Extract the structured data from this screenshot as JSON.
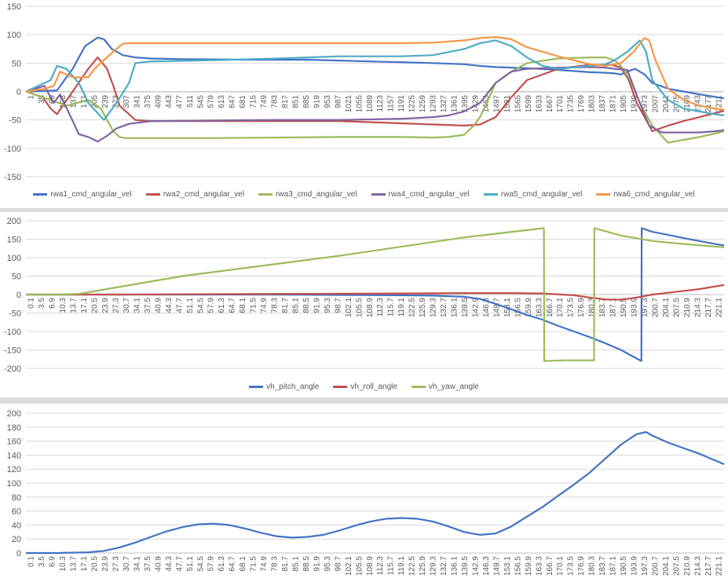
{
  "chart_data": [
    {
      "type": "line",
      "title": "",
      "xlabel": "",
      "ylabel": "",
      "ylim": [
        -150,
        150
      ],
      "y_ticks": [
        "150",
        "100",
        "50",
        "0",
        "-50",
        "-100",
        "-150"
      ],
      "grid": "horizontal",
      "legend_position": "bottom",
      "x_tick_labels": [
        "1",
        "35",
        "69",
        "103",
        "137",
        "171",
        "205",
        "239",
        "273",
        "307",
        "341",
        "375",
        "409",
        "443",
        "477",
        "511",
        "545",
        "579",
        "613",
        "647",
        "681",
        "715",
        "749",
        "783",
        "817",
        "851",
        "885",
        "919",
        "953",
        "987",
        "1021",
        "1055",
        "1089",
        "1123",
        "1157",
        "1191",
        "1225",
        "1259",
        "1293",
        "1327",
        "1361",
        "1395",
        "1429",
        "1463",
        "1497",
        "1531",
        "1565",
        "1599",
        "1633",
        "1667",
        "1701",
        "1735",
        "1769",
        "1803",
        "1837",
        "1871",
        "1905",
        "1939",
        "1973",
        "2007",
        "2041",
        "2075",
        "2109",
        "2143",
        "2177",
        "2211"
      ],
      "x_range": [
        1,
        2229
      ],
      "series": [
        {
          "name": "rwa1_cmd_angular_vel",
          "color": "#4472C4",
          "x": [
            1,
            100,
            150,
            190,
            230,
            250,
            275,
            310,
            350,
            400,
            500,
            700,
            900,
            1100,
            1300,
            1400,
            1450,
            1500,
            1550,
            1600,
            1700,
            1800,
            1850,
            1880,
            1900,
            1920,
            1945,
            1975,
            2000,
            2050,
            2100,
            2150,
            2229
          ],
          "y": [
            0,
            2,
            40,
            80,
            95,
            92,
            75,
            64,
            60,
            58,
            57,
            56,
            56,
            53,
            50,
            48,
            45,
            43,
            42,
            41,
            38,
            34,
            33,
            32,
            30,
            35,
            40,
            30,
            15,
            5,
            0,
            -5,
            -12
          ]
        },
        {
          "name": "rwa2_cmd_angular_vel",
          "color": "#C0504D",
          "x": [
            1,
            55,
            80,
            100,
            150,
            200,
            230,
            260,
            280,
            300,
            350,
            400,
            600,
            800,
            1000,
            1200,
            1400,
            1450,
            1500,
            1550,
            1600,
            1700,
            1800,
            1870,
            1900,
            1925,
            1950,
            1975,
            2000,
            2050,
            2100,
            2150,
            2200,
            2229
          ],
          "y": [
            0,
            -10,
            -30,
            -40,
            0,
            40,
            60,
            40,
            10,
            -25,
            -50,
            -52,
            -52,
            -52,
            -52,
            -56,
            -60,
            -58,
            -45,
            -10,
            20,
            40,
            47,
            47,
            42,
            20,
            -20,
            -45,
            -70,
            -60,
            -52,
            -45,
            -38,
            -34
          ]
        },
        {
          "name": "rwa3_cmd_angular_vel",
          "color": "#9BBB59",
          "x": [
            1,
            80,
            130,
            200,
            240,
            260,
            280,
            300,
            320,
            350,
            400,
            500,
            600,
            800,
            1000,
            1200,
            1300,
            1350,
            1400,
            1430,
            1450,
            1480,
            1500,
            1550,
            1600,
            1700,
            1800,
            1850,
            1880,
            1900,
            1930,
            1960,
            2000,
            2050,
            2100,
            2150,
            2200,
            2229
          ],
          "y": [
            0,
            -15,
            -25,
            -15,
            -30,
            -50,
            -70,
            -80,
            -82,
            -82,
            -82,
            -82,
            -82,
            -81,
            -80,
            -80,
            -81,
            -80,
            -76,
            -60,
            -45,
            -10,
            15,
            35,
            50,
            58,
            60,
            60,
            55,
            45,
            20,
            -20,
            -60,
            -90,
            -85,
            -80,
            -74,
            -70
          ]
        },
        {
          "name": "rwa4_cmd_angular_vel",
          "color": "#8064A2",
          "x": [
            1,
            60,
            90,
            110,
            140,
            170,
            200,
            230,
            260,
            290,
            330,
            400,
            600,
            800,
            1000,
            1200,
            1300,
            1350,
            1400,
            1450,
            1500,
            1550,
            1600,
            1700,
            1800,
            1850,
            1880,
            1920,
            1960,
            1990,
            2030,
            2100,
            2150,
            2200,
            2229
          ],
          "y": [
            0,
            10,
            -20,
            -5,
            -40,
            -75,
            -80,
            -88,
            -78,
            -65,
            -57,
            -52,
            -51,
            -50,
            -50,
            -48,
            -45,
            -42,
            -35,
            -20,
            15,
            35,
            40,
            42,
            43,
            42,
            40,
            38,
            -20,
            -60,
            -72,
            -72,
            -72,
            -70,
            -68
          ]
        },
        {
          "name": "rwa5_cmd_angular_vel",
          "color": "#4BACC6",
          "x": [
            1,
            80,
            100,
            130,
            170,
            200,
            250,
            290,
            330,
            350,
            400,
            600,
            800,
            1000,
            1200,
            1300,
            1400,
            1450,
            1500,
            1550,
            1600,
            1650,
            1700,
            1800,
            1850,
            1880,
            1920,
            1960,
            1980,
            2000,
            2050,
            2100,
            2150,
            2200,
            2229
          ],
          "y": [
            0,
            20,
            45,
            40,
            15,
            -20,
            -50,
            -20,
            15,
            50,
            53,
            55,
            58,
            62,
            62,
            64,
            75,
            85,
            90,
            80,
            60,
            45,
            40,
            45,
            48,
            55,
            70,
            90,
            70,
            20,
            -15,
            -30,
            -35,
            -40,
            -42
          ]
        },
        {
          "name": "rwa6_cmd_angular_vel",
          "color": "#F79646",
          "x": [
            1,
            60,
            90,
            110,
            150,
            200,
            220,
            260,
            290,
            310,
            330,
            400,
            600,
            800,
            1000,
            1200,
            1300,
            1400,
            1450,
            1500,
            1550,
            1600,
            1700,
            1800,
            1850,
            1900,
            1940,
            1975,
            1990,
            2010,
            2050,
            2100,
            2150,
            2200,
            2229
          ],
          "y": [
            0,
            5,
            10,
            35,
            25,
            25,
            40,
            60,
            75,
            84,
            85,
            85,
            85,
            85,
            85,
            85,
            86,
            90,
            94,
            96,
            92,
            78,
            62,
            48,
            45,
            50,
            70,
            94,
            90,
            55,
            5,
            -15,
            -25,
            -30,
            -32
          ]
        }
      ]
    },
    {
      "type": "line",
      "title": "",
      "xlabel": "",
      "ylabel": "",
      "ylim": [
        -200,
        200
      ],
      "y_ticks": [
        "200",
        "150",
        "100",
        "50",
        "0",
        "-50",
        "-100",
        "-150",
        "-200"
      ],
      "grid": "horizontal",
      "legend_position": "bottom",
      "x_tick_labels": [
        "0.1",
        "3.5",
        "6.9",
        "10.3",
        "13.7",
        "17.1",
        "20.5",
        "23.9",
        "27.3",
        "30.7",
        "34.1",
        "37.5",
        "40.9",
        "44.3",
        "47.7",
        "51.1",
        "54.5",
        "57.9",
        "61.3",
        "64.7",
        "68.1",
        "71.5",
        "74.9",
        "78.3",
        "81.7",
        "85.1",
        "88.5",
        "91.9",
        "95.3",
        "98.7",
        "102.1",
        "105.5",
        "108.9",
        "112.3",
        "115.7",
        "119.1",
        "122.5",
        "125.9",
        "129.3",
        "132.7",
        "136.1",
        "139.5",
        "142.9",
        "146.3",
        "149.7",
        "153.1",
        "156.5",
        "159.9",
        "163.3",
        "166.7",
        "170.1",
        "173.5",
        "176.9",
        "180.3",
        "183.7",
        "187.1",
        "190.5",
        "193.9",
        "197.3",
        "200.7",
        "204.1",
        "207.5",
        "210.9",
        "214.3",
        "217.7",
        "221.1"
      ],
      "x_range": [
        0.1,
        222.9
      ],
      "series": [
        {
          "name": "vh_pitch_angle",
          "color": "#4472C4",
          "x": [
            0.1,
            20,
            40,
            60,
            80,
            100,
            120,
            130,
            140,
            145,
            150,
            155,
            160,
            165,
            170,
            175,
            180,
            185,
            190,
            196.5,
            196.6,
            200,
            205,
            210,
            215,
            220,
            222.9
          ],
          "y": [
            0,
            0,
            0,
            0,
            0,
            -1,
            -2,
            -3,
            -6,
            -12,
            -25,
            -40,
            -55,
            -68,
            -85,
            -100,
            -115,
            -132,
            -150,
            -180,
            180,
            170,
            162,
            153,
            145,
            137,
            133
          ]
        },
        {
          "name": "vh_roll_angle",
          "color": "#C0504D",
          "x": [
            0.1,
            30,
            60,
            90,
            120,
            140,
            155,
            165,
            175,
            180,
            185,
            190,
            195,
            200,
            205,
            210,
            215,
            222.9
          ],
          "y": [
            0,
            0,
            1,
            2,
            3,
            4,
            4,
            3,
            -2,
            -8,
            -13,
            -14,
            -8,
            0,
            5,
            10,
            15,
            26
          ]
        },
        {
          "name": "vh_yaw_angle",
          "color": "#9BBB59",
          "x": [
            0.1,
            10,
            17,
            50,
            100,
            140,
            165.4,
            165.5,
            172,
            181.4,
            181.5,
            190,
            200,
            210,
            222.9
          ],
          "y": [
            0,
            0,
            2,
            50,
            105,
            155,
            180,
            -180,
            -178,
            -178,
            180,
            160,
            145,
            137,
            128
          ]
        }
      ]
    },
    {
      "type": "line",
      "title": "",
      "xlabel": "",
      "ylabel": "",
      "ylim": [
        0,
        200
      ],
      "y_ticks": [
        "200",
        "180",
        "160",
        "140",
        "120",
        "100",
        "80",
        "60",
        "40",
        "20",
        "0"
      ],
      "grid": "horizontal",
      "legend_position": "none",
      "x_tick_labels": [
        "0.1",
        "3.5",
        "6.9",
        "10.3",
        "13.7",
        "17.1",
        "20.5",
        "23.9",
        "27.3",
        "30.7",
        "34.1",
        "37.5",
        "40.9",
        "44.3",
        "47.7",
        "51.1",
        "54.5",
        "57.9",
        "61.3",
        "64.7",
        "68.1",
        "71.5",
        "74.9",
        "78.3",
        "81.7",
        "85.1",
        "88.5",
        "91.9",
        "95.3",
        "98.7",
        "102.1",
        "105.5",
        "108.9",
        "112.3",
        "115.7",
        "119.1",
        "122.5",
        "125.9",
        "129.3",
        "132.7",
        "136.1",
        "139.5",
        "142.9",
        "146.3",
        "149.7",
        "153.1",
        "156.5",
        "159.9",
        "163.3",
        "166.7",
        "170.1",
        "173.5",
        "176.9",
        "180.3",
        "183.7",
        "187.1",
        "190.5",
        "193.9",
        "197.3",
        "200.7",
        "204.1",
        "207.5",
        "210.9",
        "214.3",
        "217.7",
        "221.1"
      ],
      "x_range": [
        0.1,
        222.9
      ],
      "series": [
        {
          "name": "",
          "color": "#4472C4",
          "x": [
            0.1,
            10,
            20,
            25,
            30,
            35,
            40,
            45,
            50,
            55,
            60,
            65,
            70,
            75,
            80,
            85,
            90,
            95,
            100,
            105,
            110,
            115,
            120,
            125,
            130,
            135,
            140,
            145,
            150,
            155,
            160,
            165,
            170,
            175,
            180,
            185,
            190,
            195,
            198,
            200,
            205,
            210,
            215,
            222.9
          ],
          "y": [
            0,
            0,
            1,
            3,
            8,
            15,
            23,
            31,
            37,
            41,
            42,
            40,
            35,
            29,
            24,
            22,
            23,
            26,
            32,
            39,
            45,
            49,
            50,
            49,
            45,
            38,
            30,
            26,
            28,
            38,
            52,
            66,
            82,
            98,
            115,
            135,
            155,
            170,
            173,
            168,
            158,
            150,
            142,
            127
          ]
        }
      ]
    }
  ]
}
